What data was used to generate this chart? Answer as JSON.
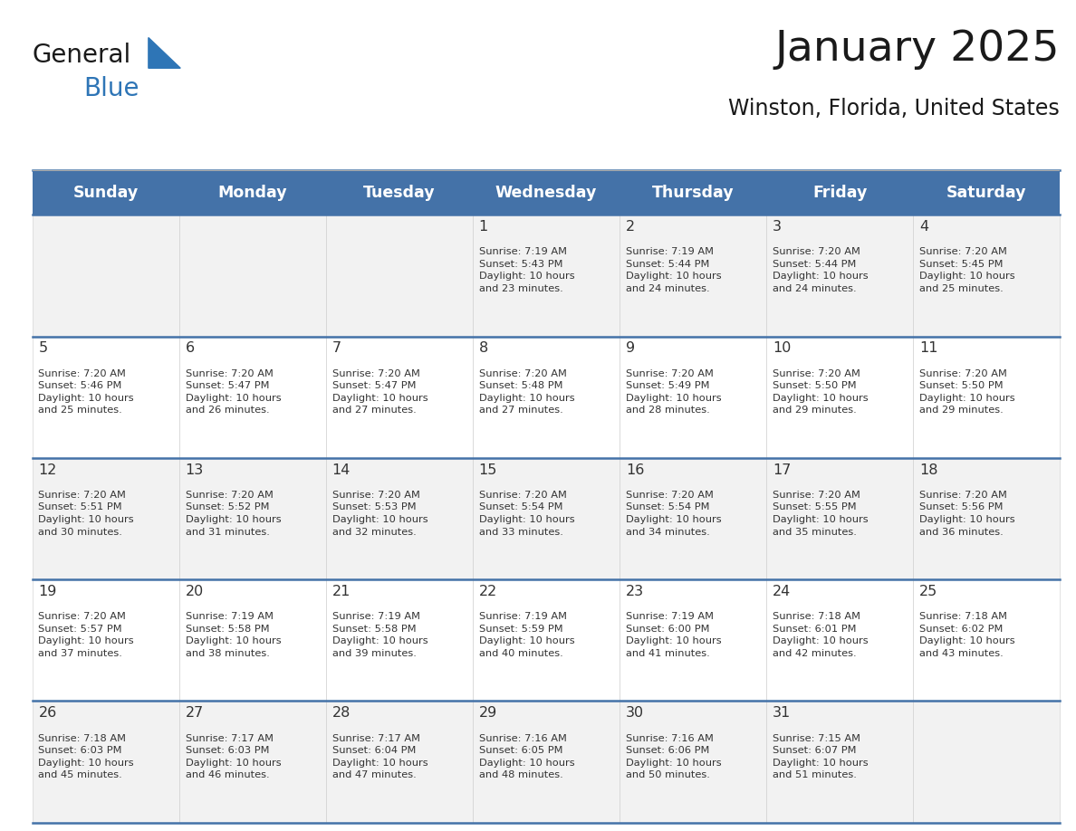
{
  "title": "January 2025",
  "subtitle": "Winston, Florida, United States",
  "days_of_week": [
    "Sunday",
    "Monday",
    "Tuesday",
    "Wednesday",
    "Thursday",
    "Friday",
    "Saturday"
  ],
  "header_bg": "#4472a8",
  "header_text": "#ffffff",
  "cell_bg_light": "#f2f2f2",
  "cell_bg_white": "#ffffff",
  "day_num_color": "#333333",
  "info_text_color": "#333333",
  "border_color": "#4472a8",
  "title_color": "#1a1a1a",
  "subtitle_color": "#1a1a1a",
  "calendar_data": [
    [
      {
        "day": null,
        "info": ""
      },
      {
        "day": null,
        "info": ""
      },
      {
        "day": null,
        "info": ""
      },
      {
        "day": 1,
        "info": "Sunrise: 7:19 AM\nSunset: 5:43 PM\nDaylight: 10 hours\nand 23 minutes."
      },
      {
        "day": 2,
        "info": "Sunrise: 7:19 AM\nSunset: 5:44 PM\nDaylight: 10 hours\nand 24 minutes."
      },
      {
        "day": 3,
        "info": "Sunrise: 7:20 AM\nSunset: 5:44 PM\nDaylight: 10 hours\nand 24 minutes."
      },
      {
        "day": 4,
        "info": "Sunrise: 7:20 AM\nSunset: 5:45 PM\nDaylight: 10 hours\nand 25 minutes."
      }
    ],
    [
      {
        "day": 5,
        "info": "Sunrise: 7:20 AM\nSunset: 5:46 PM\nDaylight: 10 hours\nand 25 minutes."
      },
      {
        "day": 6,
        "info": "Sunrise: 7:20 AM\nSunset: 5:47 PM\nDaylight: 10 hours\nand 26 minutes."
      },
      {
        "day": 7,
        "info": "Sunrise: 7:20 AM\nSunset: 5:47 PM\nDaylight: 10 hours\nand 27 minutes."
      },
      {
        "day": 8,
        "info": "Sunrise: 7:20 AM\nSunset: 5:48 PM\nDaylight: 10 hours\nand 27 minutes."
      },
      {
        "day": 9,
        "info": "Sunrise: 7:20 AM\nSunset: 5:49 PM\nDaylight: 10 hours\nand 28 minutes."
      },
      {
        "day": 10,
        "info": "Sunrise: 7:20 AM\nSunset: 5:50 PM\nDaylight: 10 hours\nand 29 minutes."
      },
      {
        "day": 11,
        "info": "Sunrise: 7:20 AM\nSunset: 5:50 PM\nDaylight: 10 hours\nand 29 minutes."
      }
    ],
    [
      {
        "day": 12,
        "info": "Sunrise: 7:20 AM\nSunset: 5:51 PM\nDaylight: 10 hours\nand 30 minutes."
      },
      {
        "day": 13,
        "info": "Sunrise: 7:20 AM\nSunset: 5:52 PM\nDaylight: 10 hours\nand 31 minutes."
      },
      {
        "day": 14,
        "info": "Sunrise: 7:20 AM\nSunset: 5:53 PM\nDaylight: 10 hours\nand 32 minutes."
      },
      {
        "day": 15,
        "info": "Sunrise: 7:20 AM\nSunset: 5:54 PM\nDaylight: 10 hours\nand 33 minutes."
      },
      {
        "day": 16,
        "info": "Sunrise: 7:20 AM\nSunset: 5:54 PM\nDaylight: 10 hours\nand 34 minutes."
      },
      {
        "day": 17,
        "info": "Sunrise: 7:20 AM\nSunset: 5:55 PM\nDaylight: 10 hours\nand 35 minutes."
      },
      {
        "day": 18,
        "info": "Sunrise: 7:20 AM\nSunset: 5:56 PM\nDaylight: 10 hours\nand 36 minutes."
      }
    ],
    [
      {
        "day": 19,
        "info": "Sunrise: 7:20 AM\nSunset: 5:57 PM\nDaylight: 10 hours\nand 37 minutes."
      },
      {
        "day": 20,
        "info": "Sunrise: 7:19 AM\nSunset: 5:58 PM\nDaylight: 10 hours\nand 38 minutes."
      },
      {
        "day": 21,
        "info": "Sunrise: 7:19 AM\nSunset: 5:58 PM\nDaylight: 10 hours\nand 39 minutes."
      },
      {
        "day": 22,
        "info": "Sunrise: 7:19 AM\nSunset: 5:59 PM\nDaylight: 10 hours\nand 40 minutes."
      },
      {
        "day": 23,
        "info": "Sunrise: 7:19 AM\nSunset: 6:00 PM\nDaylight: 10 hours\nand 41 minutes."
      },
      {
        "day": 24,
        "info": "Sunrise: 7:18 AM\nSunset: 6:01 PM\nDaylight: 10 hours\nand 42 minutes."
      },
      {
        "day": 25,
        "info": "Sunrise: 7:18 AM\nSunset: 6:02 PM\nDaylight: 10 hours\nand 43 minutes."
      }
    ],
    [
      {
        "day": 26,
        "info": "Sunrise: 7:18 AM\nSunset: 6:03 PM\nDaylight: 10 hours\nand 45 minutes."
      },
      {
        "day": 27,
        "info": "Sunrise: 7:17 AM\nSunset: 6:03 PM\nDaylight: 10 hours\nand 46 minutes."
      },
      {
        "day": 28,
        "info": "Sunrise: 7:17 AM\nSunset: 6:04 PM\nDaylight: 10 hours\nand 47 minutes."
      },
      {
        "day": 29,
        "info": "Sunrise: 7:16 AM\nSunset: 6:05 PM\nDaylight: 10 hours\nand 48 minutes."
      },
      {
        "day": 30,
        "info": "Sunrise: 7:16 AM\nSunset: 6:06 PM\nDaylight: 10 hours\nand 50 minutes."
      },
      {
        "day": 31,
        "info": "Sunrise: 7:15 AM\nSunset: 6:07 PM\nDaylight: 10 hours\nand 51 minutes."
      },
      {
        "day": null,
        "info": ""
      }
    ]
  ],
  "logo_text_general": "General",
  "logo_text_blue": "Blue",
  "logo_triangle_color": "#2e75b6",
  "logo_blue_color": "#2e75b6",
  "logo_general_color": "#1a1a1a"
}
